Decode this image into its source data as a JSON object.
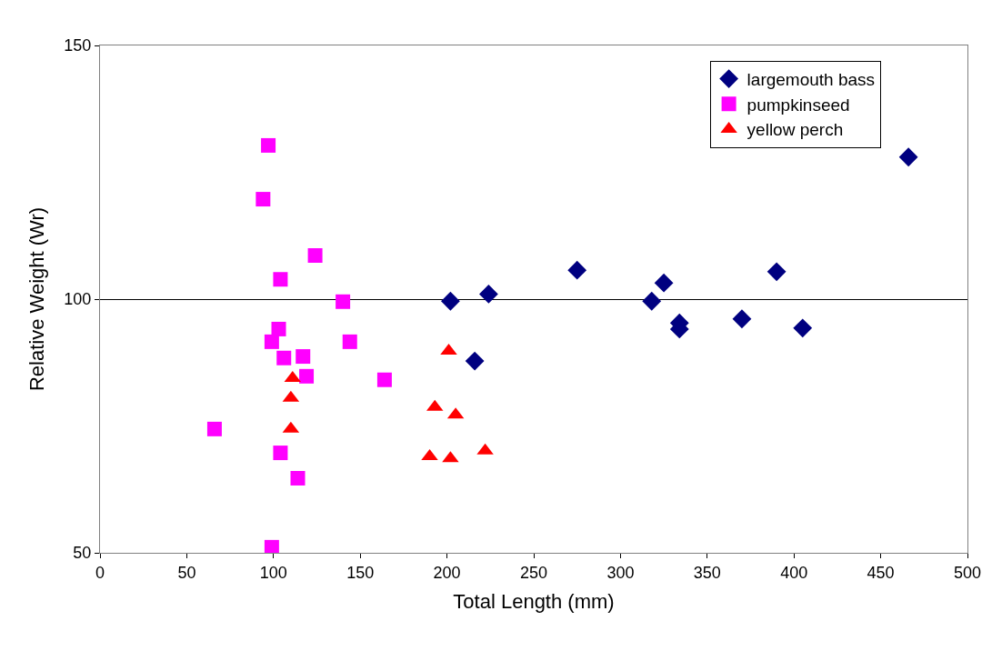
{
  "chart_data": {
    "type": "scatter",
    "xlabel": "Total Length (mm)",
    "ylabel": "Relative Weight (Wr)",
    "xlim": [
      0,
      500
    ],
    "xticks": [
      0,
      50,
      100,
      150,
      200,
      250,
      300,
      350,
      400,
      450,
      500
    ],
    "ylim": [
      50,
      150
    ],
    "yticks": [
      50,
      100,
      150
    ],
    "grid": "y",
    "legend": "top right",
    "series": [
      {
        "name": "largemouth bass",
        "color": "#000080",
        "marker": "diamond",
        "x": [
          202,
          216,
          224,
          275,
          318,
          325,
          334,
          334,
          370,
          390,
          405,
          466
        ],
        "values": [
          99.6,
          87.8,
          101,
          105.7,
          99.6,
          103.2,
          95.3,
          94.1,
          96.1,
          105.4,
          94.3,
          128
        ]
      },
      {
        "name": "pumpkinseed",
        "color": "#ff00ff",
        "marker": "square",
        "x": [
          97,
          94,
          124,
          104,
          140,
          103,
          99,
          144,
          106,
          117,
          119,
          164,
          66,
          104,
          114,
          99
        ],
        "values": [
          130.3,
          119.7,
          108.6,
          103.9,
          99.5,
          94.1,
          91.6,
          91.6,
          88.4,
          88.7,
          84.8,
          84.1,
          74.4,
          69.7,
          64.7,
          51.1
        ]
      },
      {
        "name": "yellow perch",
        "color": "#ff0000",
        "marker": "triangle",
        "x": [
          111,
          110,
          110,
          201,
          193,
          205,
          190,
          202,
          222
        ],
        "values": [
          84.4,
          80.5,
          74.4,
          89.8,
          78.7,
          77.2,
          69,
          68.6,
          70.1
        ]
      }
    ]
  }
}
